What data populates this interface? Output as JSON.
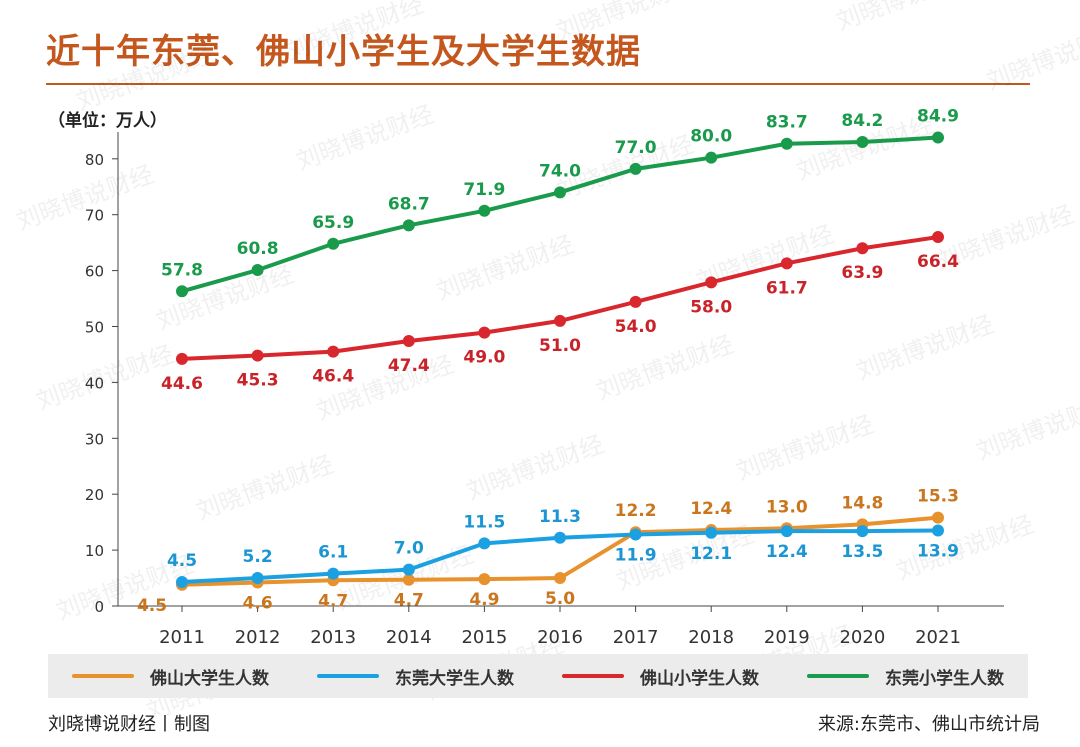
{
  "header": {
    "title": "近十年东莞、佛山小学生及大学生数据",
    "unit": "（单位：万人）"
  },
  "footer": {
    "left": "刘晓博说财经丨制图",
    "right": "来源:东莞市、佛山市统计局"
  },
  "watermark": "刘晓博说财经",
  "chart_data": {
    "type": "line",
    "categories": [
      "2011",
      "2012",
      "2013",
      "2014",
      "2015",
      "2016",
      "2017",
      "2018",
      "2019",
      "2020",
      "2021"
    ],
    "ylim": [
      0,
      85
    ],
    "yticks": [
      0,
      10,
      20,
      30,
      40,
      50,
      60,
      70,
      80
    ],
    "grid": false,
    "legend_position": "bottom",
    "series": [
      {
        "name": "佛山大学生人数",
        "color": "#e8922e",
        "label_color": "#c9761e",
        "values": [
          4.5,
          4.6,
          4.7,
          4.7,
          4.9,
          5.0,
          12.2,
          12.4,
          13.0,
          14.8,
          15.3
        ],
        "plotted": [
          3.8,
          4.2,
          4.6,
          4.7,
          4.8,
          5.0,
          13.2,
          13.6,
          13.9,
          14.6,
          15.8
        ]
      },
      {
        "name": "东莞大学生人数",
        "color": "#1ba1e2",
        "label_color": "#1b96d3",
        "values": [
          4.5,
          5.2,
          6.1,
          7.0,
          11.5,
          11.3,
          11.9,
          12.1,
          12.4,
          13.5,
          13.9
        ],
        "plotted": [
          4.3,
          5.0,
          5.8,
          6.5,
          11.2,
          12.2,
          12.8,
          13.1,
          13.4,
          13.4,
          13.5
        ]
      },
      {
        "name": "佛山小学生人数",
        "color": "#d9272e",
        "label_color": "#c9232a",
        "values": [
          44.6,
          45.3,
          46.4,
          47.4,
          49.0,
          51.0,
          54.0,
          58.0,
          61.7,
          63.9,
          66.4
        ],
        "plotted": [
          44.2,
          44.8,
          45.5,
          47.4,
          48.9,
          51.0,
          54.4,
          57.9,
          61.3,
          64.0,
          66.0
        ]
      },
      {
        "name": "东莞小学生人数",
        "color": "#1a9a4b",
        "label_color": "#1a9a4b",
        "values": [
          57.8,
          60.8,
          65.9,
          68.7,
          71.9,
          74.0,
          77.0,
          80.0,
          83.7,
          84.2,
          84.9
        ],
        "plotted": [
          56.3,
          60.1,
          64.8,
          68.1,
          70.7,
          74.0,
          78.2,
          80.2,
          82.7,
          83.0,
          83.8
        ]
      }
    ]
  }
}
